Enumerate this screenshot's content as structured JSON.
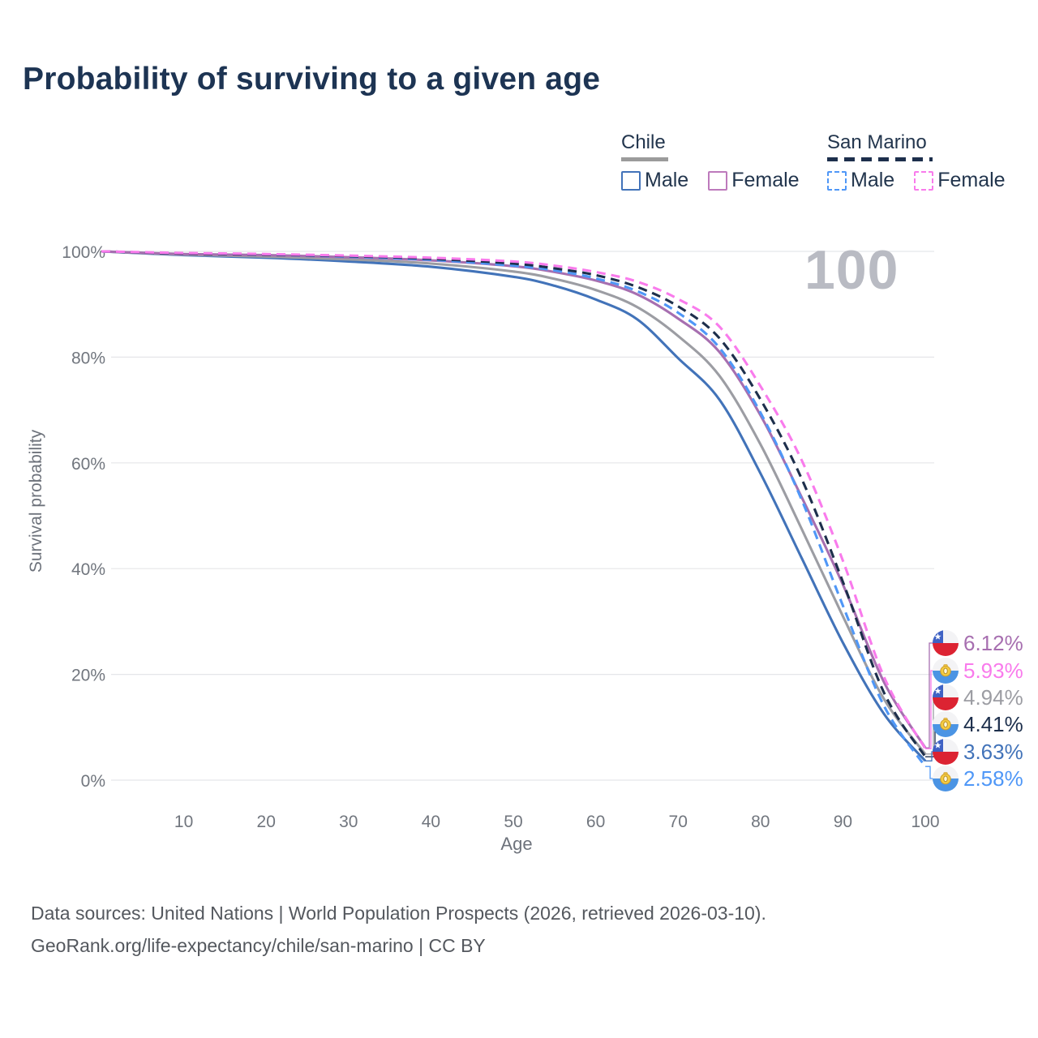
{
  "title": "Probability of surviving to a given age",
  "watermark_age": "100",
  "legend": {
    "groups": [
      {
        "label": "Chile",
        "line_style": "solid",
        "underline_color": "#9b9b9b",
        "items": [
          {
            "label": "Male",
            "color": "#4273b9"
          },
          {
            "label": "Female",
            "color": "#bd7abc"
          }
        ]
      },
      {
        "label": "San Marino",
        "line_style": "dashed",
        "underline_color": "#1d2f4c",
        "items": [
          {
            "label": "Male",
            "color": "#4f97f7"
          },
          {
            "label": "Female",
            "color": "#f97bec"
          }
        ]
      }
    ]
  },
  "axes": {
    "x_label": "Age",
    "y_label": "Survival probability",
    "x_ticks": [
      10,
      20,
      30,
      40,
      50,
      60,
      70,
      80,
      90,
      100
    ],
    "y_ticks": [
      0,
      20,
      40,
      60,
      80,
      100
    ],
    "y_tick_suffix": "%"
  },
  "chart_data": {
    "type": "line",
    "title": "Probability of surviving to a given age",
    "xlabel": "Age",
    "ylabel": "Survival probability",
    "xlim": [
      0,
      100
    ],
    "ylim": [
      0,
      100
    ],
    "grid": true,
    "legend_position": "top-right",
    "ages": [
      0,
      10,
      20,
      30,
      40,
      50,
      55,
      60,
      65,
      70,
      75,
      80,
      85,
      90,
      95,
      100
    ],
    "series": [
      {
        "name": "Chile Male",
        "country": "Chile",
        "sex": "Male",
        "flag": "chile",
        "color": "#4273b9",
        "dash": false,
        "end_label": "3.63%",
        "end_value": 3.63,
        "values": [
          100,
          99.3,
          98.8,
          98.1,
          97.1,
          95.2,
          93.5,
          90.9,
          87.2,
          79.8,
          72.0,
          58.0,
          42.0,
          26.0,
          12.5,
          3.63
        ]
      },
      {
        "name": "Chile Both sexes",
        "country": "Chile",
        "sex": "Both",
        "flag": "chile",
        "color": "#9c9da3",
        "dash": false,
        "end_label": "4.94%",
        "end_value": 4.94,
        "values": [
          100,
          99.4,
          99.0,
          98.5,
          97.7,
          96.2,
          94.8,
          92.7,
          89.5,
          84.0,
          76.5,
          63.5,
          47.5,
          31.0,
          15.3,
          4.94
        ]
      },
      {
        "name": "Chile Female",
        "country": "Chile",
        "sex": "Female",
        "flag": "chile",
        "color": "#a76fb0",
        "dash": false,
        "end_label": "6.12%",
        "end_value": 6.12,
        "values": [
          100,
          99.5,
          99.3,
          98.9,
          98.3,
          97.2,
          96.1,
          94.5,
          91.9,
          87.3,
          81.0,
          69.0,
          53.5,
          37.0,
          18.5,
          6.12
        ]
      },
      {
        "name": "San Marino Male",
        "country": "San Marino",
        "sex": "Male",
        "flag": "san-marino",
        "color": "#4f97f7",
        "dash": true,
        "end_label": "2.58%",
        "end_value": 2.58,
        "values": [
          100,
          99.6,
          99.4,
          99.0,
          98.4,
          97.3,
          96.4,
          94.9,
          92.5,
          88.4,
          81.8,
          69.5,
          53.0,
          33.0,
          14.0,
          2.58
        ]
      },
      {
        "name": "San Marino Both sexes",
        "country": "San Marino",
        "sex": "Both",
        "flag": "san-marino",
        "color": "#1d2f4c",
        "dash": true,
        "end_label": "4.41%",
        "end_value": 4.41,
        "values": [
          100,
          99.6,
          99.4,
          99.1,
          98.6,
          97.7,
          96.8,
          95.5,
          93.3,
          89.6,
          83.6,
          72.0,
          57.0,
          37.5,
          16.5,
          4.41
        ]
      },
      {
        "name": "San Marino Female",
        "country": "San Marino",
        "sex": "Female",
        "flag": "san-marino",
        "color": "#f97bec",
        "dash": true,
        "end_label": "5.93%",
        "end_value": 5.93,
        "values": [
          100,
          99.7,
          99.5,
          99.2,
          98.8,
          98.1,
          97.3,
          96.1,
          94.3,
          91.0,
          85.8,
          74.5,
          60.5,
          41.5,
          19.5,
          5.93
        ]
      }
    ]
  },
  "footer": {
    "line1": "Data sources: United Nations | World Population Prospects (2026, retrieved 2026-03-10).",
    "line2": "GeoRank.org/life-expectancy/chile/san-marino | CC BY"
  }
}
